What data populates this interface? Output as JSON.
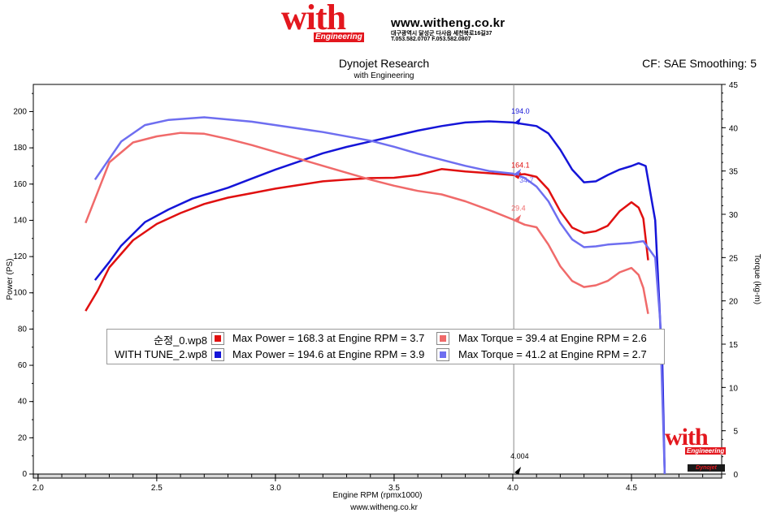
{
  "header": {
    "logo_text": "with",
    "logo_sub": "Engineering",
    "website": "www.witheng.co.kr",
    "address": "대구광역시 달성군 다사읍 세천북로16길37",
    "phone": "T.053.582.0707 F.053.582.0807",
    "title": "Dynojet Research",
    "subtitle": "with Engineering",
    "cf_text": "CF: SAE Smoothing: 5"
  },
  "footer": {
    "website": "www.witheng.co.kr",
    "logo_text": "with",
    "logo_sub": "Engineering",
    "dynojet_badge": "Dynojet"
  },
  "colors": {
    "stock_power": "#e01010",
    "stock_torque": "#f06a6a",
    "tune_power": "#1515d8",
    "tune_torque": "#6e6ef0",
    "cursor": "#8a8a8a"
  },
  "legend": [
    {
      "name": "순정_0.wp8",
      "power_text": "Max Power = 168.3 at Engine RPM = 3.7",
      "torque_text": "Max Torque = 39.4 at Engine RPM = 2.6",
      "power_color": "#e01010",
      "torque_color": "#f06a6a"
    },
    {
      "name": "WITH TUNE_2.wp8",
      "power_text": "Max Power = 194.6 at Engine RPM = 3.9",
      "torque_text": "Max Torque = 41.2 at Engine RPM = 2.7",
      "power_color": "#1515d8",
      "torque_color": "#6e6ef0"
    }
  ],
  "chart_data": {
    "type": "line",
    "xlabel": "Engine RPM (rpmx1000)",
    "ylabel": "Power (PS)",
    "ylabel_right": "Torque (kg-m)",
    "xlim": [
      1.98,
      4.88
    ],
    "ylim": [
      0,
      215
    ],
    "ylim_right": [
      0,
      45
    ],
    "x_ticks": [
      "2.0",
      "2.5",
      "3.0",
      "3.5",
      "4.0",
      "4.5"
    ],
    "y_ticks": [
      "0",
      "20",
      "40",
      "60",
      "80",
      "100",
      "120",
      "140",
      "160",
      "180",
      "200"
    ],
    "y_ticks_right": [
      "0",
      "5",
      "10",
      "15",
      "20",
      "25",
      "30",
      "35",
      "40",
      "45"
    ],
    "cursor": {
      "x": 4.004,
      "x_label": "4.004",
      "tune_power": "194.0",
      "stock_power": "164.1",
      "tune_torque": "34.7",
      "stock_torque": "29.4"
    },
    "series": [
      {
        "name": "순정_0.wp8",
        "kind": "power",
        "axis": "left",
        "points": [
          [
            2.2,
            90
          ],
          [
            2.25,
            101
          ],
          [
            2.3,
            114
          ],
          [
            2.4,
            129
          ],
          [
            2.5,
            138
          ],
          [
            2.6,
            144
          ],
          [
            2.7,
            149
          ],
          [
            2.8,
            152.5
          ],
          [
            2.9,
            155
          ],
          [
            3.0,
            157.5
          ],
          [
            3.1,
            159.5
          ],
          [
            3.2,
            161.5
          ],
          [
            3.3,
            162.5
          ],
          [
            3.4,
            163.3
          ],
          [
            3.5,
            163.5
          ],
          [
            3.6,
            165
          ],
          [
            3.7,
            168.3
          ],
          [
            3.8,
            167
          ],
          [
            3.9,
            166
          ],
          [
            4.0,
            165
          ],
          [
            4.05,
            165.5
          ],
          [
            4.1,
            164
          ],
          [
            4.15,
            157
          ],
          [
            4.2,
            145
          ],
          [
            4.25,
            136
          ],
          [
            4.3,
            133
          ],
          [
            4.35,
            134
          ],
          [
            4.4,
            137
          ],
          [
            4.45,
            145
          ],
          [
            4.5,
            150
          ],
          [
            4.53,
            147
          ],
          [
            4.55,
            141
          ],
          [
            4.57,
            118
          ]
        ]
      },
      {
        "name": "WITH TUNE_2.wp8",
        "kind": "power",
        "axis": "left",
        "points": [
          [
            2.24,
            107
          ],
          [
            2.3,
            117
          ],
          [
            2.35,
            126
          ],
          [
            2.45,
            139
          ],
          [
            2.55,
            146
          ],
          [
            2.65,
            152
          ],
          [
            2.8,
            158
          ],
          [
            2.9,
            163
          ],
          [
            3.0,
            168
          ],
          [
            3.1,
            172.5
          ],
          [
            3.2,
            177
          ],
          [
            3.3,
            180.5
          ],
          [
            3.4,
            183.5
          ],
          [
            3.5,
            186.5
          ],
          [
            3.6,
            189.5
          ],
          [
            3.7,
            192
          ],
          [
            3.8,
            194
          ],
          [
            3.9,
            194.6
          ],
          [
            4.0,
            194
          ],
          [
            4.1,
            192
          ],
          [
            4.15,
            188
          ],
          [
            4.2,
            179
          ],
          [
            4.25,
            168
          ],
          [
            4.3,
            161
          ],
          [
            4.35,
            161.5
          ],
          [
            4.4,
            165
          ],
          [
            4.45,
            168
          ],
          [
            4.5,
            170
          ],
          [
            4.53,
            171.5
          ],
          [
            4.56,
            170
          ],
          [
            4.6,
            140
          ],
          [
            4.63,
            60
          ],
          [
            4.64,
            0
          ]
        ]
      },
      {
        "name": "순정_0.wp8",
        "kind": "torque",
        "axis": "right",
        "points": [
          [
            2.2,
            29
          ],
          [
            2.3,
            36
          ],
          [
            2.4,
            38.3
          ],
          [
            2.5,
            39
          ],
          [
            2.6,
            39.4
          ],
          [
            2.7,
            39.3
          ],
          [
            2.8,
            38.7
          ],
          [
            2.9,
            38
          ],
          [
            3.0,
            37.2
          ],
          [
            3.1,
            36.4
          ],
          [
            3.2,
            35.6
          ],
          [
            3.3,
            34.8
          ],
          [
            3.4,
            34
          ],
          [
            3.5,
            33.3
          ],
          [
            3.6,
            32.7
          ],
          [
            3.7,
            32.3
          ],
          [
            3.8,
            31.5
          ],
          [
            3.9,
            30.5
          ],
          [
            4.0,
            29.4
          ],
          [
            4.05,
            28.8
          ],
          [
            4.1,
            28.5
          ],
          [
            4.15,
            26.5
          ],
          [
            4.2,
            24
          ],
          [
            4.25,
            22.3
          ],
          [
            4.3,
            21.6
          ],
          [
            4.35,
            21.8
          ],
          [
            4.4,
            22.3
          ],
          [
            4.45,
            23.3
          ],
          [
            4.5,
            23.8
          ],
          [
            4.53,
            23
          ],
          [
            4.55,
            21.5
          ],
          [
            4.57,
            18.5
          ]
        ]
      },
      {
        "name": "WITH TUNE_2.wp8",
        "kind": "torque",
        "axis": "right",
        "points": [
          [
            2.24,
            34
          ],
          [
            2.35,
            38.4
          ],
          [
            2.45,
            40.3
          ],
          [
            2.55,
            40.9
          ],
          [
            2.7,
            41.2
          ],
          [
            2.9,
            40.7
          ],
          [
            3.0,
            40.3
          ],
          [
            3.2,
            39.5
          ],
          [
            3.4,
            38.5
          ],
          [
            3.5,
            37.8
          ],
          [
            3.6,
            37
          ],
          [
            3.7,
            36.3
          ],
          [
            3.8,
            35.6
          ],
          [
            3.9,
            35
          ],
          [
            4.0,
            34.7
          ],
          [
            4.05,
            34.2
          ],
          [
            4.1,
            33.2
          ],
          [
            4.15,
            31.5
          ],
          [
            4.2,
            29
          ],
          [
            4.25,
            27.1
          ],
          [
            4.3,
            26.2
          ],
          [
            4.35,
            26.3
          ],
          [
            4.4,
            26.5
          ],
          [
            4.45,
            26.6
          ],
          [
            4.5,
            26.7
          ],
          [
            4.55,
            26.9
          ],
          [
            4.6,
            25
          ],
          [
            4.62,
            18
          ],
          [
            4.64,
            0
          ]
        ]
      }
    ]
  }
}
